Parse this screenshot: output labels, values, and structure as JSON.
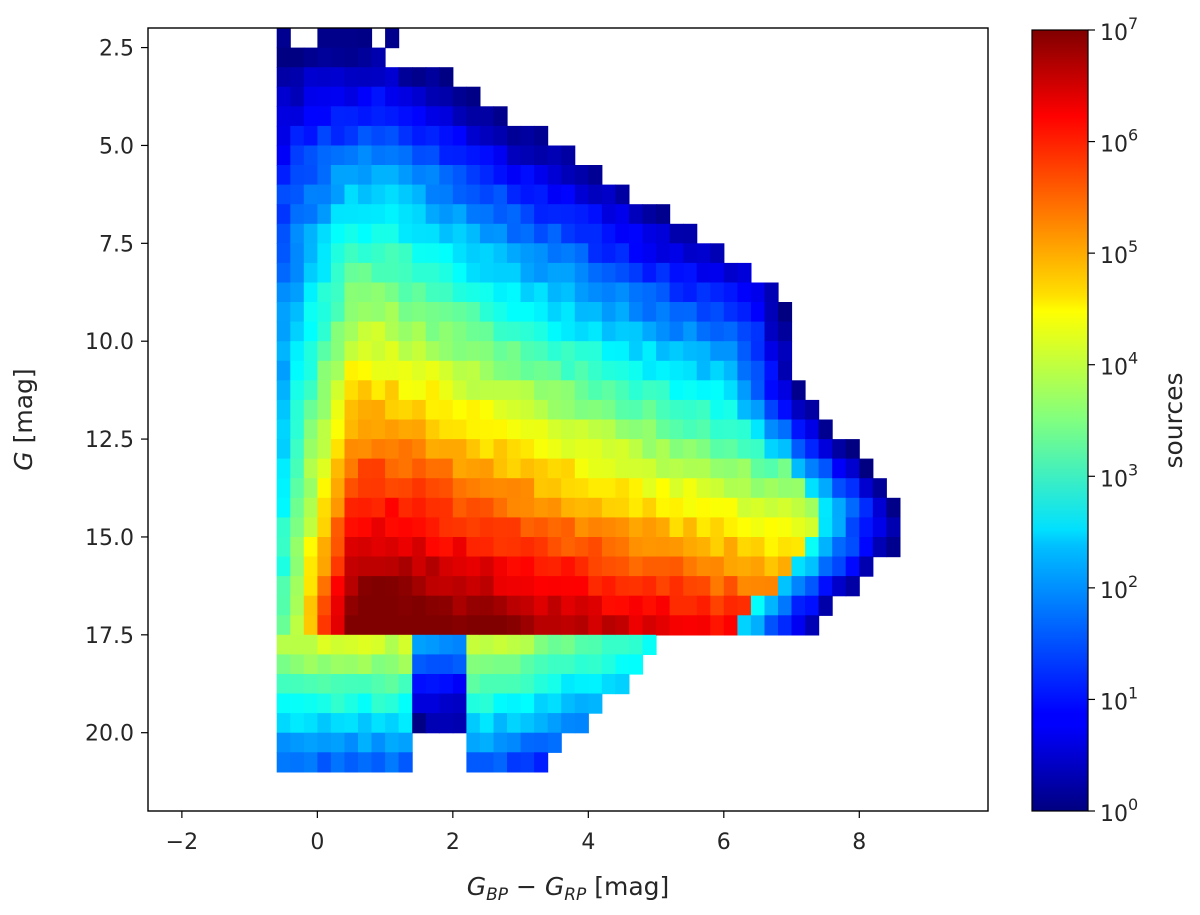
{
  "chart_data": {
    "type": "heatmap",
    "title": "",
    "xlabel": {
      "base": "G",
      "sub1": "BP",
      "minus": " − ",
      "sub2": "RP",
      "unit": " [mag]"
    },
    "ylabel": {
      "italic": "G",
      "unit": " [mag]"
    },
    "colorbar_label": "sources",
    "xlim": [
      -2.5,
      9.9
    ],
    "ylim": [
      22.0,
      2.0
    ],
    "x_ticks": [
      -2,
      0,
      2,
      4,
      6,
      8
    ],
    "x_tick_labels": [
      "−2",
      "0",
      "2",
      "4",
      "6",
      "8"
    ],
    "y_ticks": [
      2.5,
      5.0,
      7.5,
      10.0,
      12.5,
      15.0,
      17.5,
      20.0
    ],
    "y_tick_labels": [
      "2.5",
      "5.0",
      "7.5",
      "10.0",
      "12.5",
      "15.0",
      "17.5",
      "20.0"
    ],
    "y_inverted": true,
    "colorbar": {
      "scale": "log",
      "range": [
        1,
        10000000
      ],
      "colormap": "jet",
      "ticks": [
        {
          "value": 1,
          "base": "10",
          "exp": "0"
        },
        {
          "value": 10,
          "base": "10",
          "exp": "1"
        },
        {
          "value": 100,
          "base": "10",
          "exp": "2"
        },
        {
          "value": 1000,
          "base": "10",
          "exp": "3"
        },
        {
          "value": 10000,
          "base": "10",
          "exp": "4"
        },
        {
          "value": 100000,
          "base": "10",
          "exp": "5"
        },
        {
          "value": 1000000,
          "base": "10",
          "exp": "6"
        },
        {
          "value": 10000000,
          "base": "10",
          "exp": "7"
        }
      ]
    },
    "bins": {
      "x_start": -1.2,
      "x_width": 0.2,
      "y_start": 2.0,
      "y_width": 0.5
    },
    "density_model": {
      "description_free": true,
      "main_branch_peak": {
        "x": 1.0,
        "y": 16.5,
        "log10_counts": 6.9
      },
      "g_cut": 17.5
    },
    "grid": false,
    "legend": "none"
  }
}
